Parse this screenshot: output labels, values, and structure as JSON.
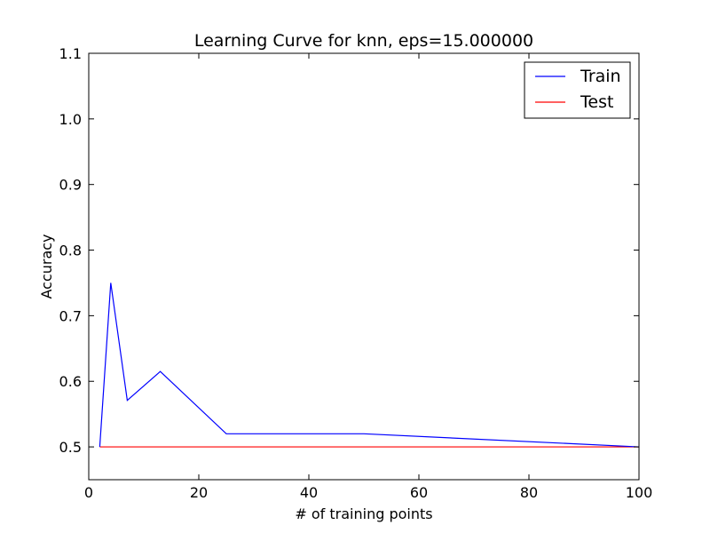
{
  "chart_data": {
    "type": "line",
    "title": "Learning Curve for knn, eps=15.000000",
    "xlabel": "# of training points",
    "ylabel": "Accuracy",
    "xlim": [
      0,
      100
    ],
    "ylim": [
      0.45,
      1.1
    ],
    "xticks": [
      0,
      20,
      40,
      60,
      80,
      100
    ],
    "yticks": [
      0.5,
      0.6,
      0.7,
      0.8,
      0.9,
      1.0,
      1.1
    ],
    "ytick_labels": [
      "0.5",
      "0.6",
      "0.7",
      "0.8",
      "0.9",
      "1.0",
      "1.1"
    ],
    "grid": false,
    "legend_position": "top-right",
    "series": [
      {
        "name": "Train",
        "color": "#0000ff",
        "x": [
          2,
          4,
          7,
          13,
          25,
          50,
          100
        ],
        "y": [
          0.5,
          0.75,
          0.571,
          0.615,
          0.52,
          0.52,
          0.5
        ]
      },
      {
        "name": "Test",
        "color": "#ff0000",
        "x": [
          2,
          4,
          7,
          13,
          25,
          50,
          100
        ],
        "y": [
          0.5,
          0.5,
          0.5,
          0.5,
          0.5,
          0.5,
          0.5
        ]
      }
    ]
  }
}
